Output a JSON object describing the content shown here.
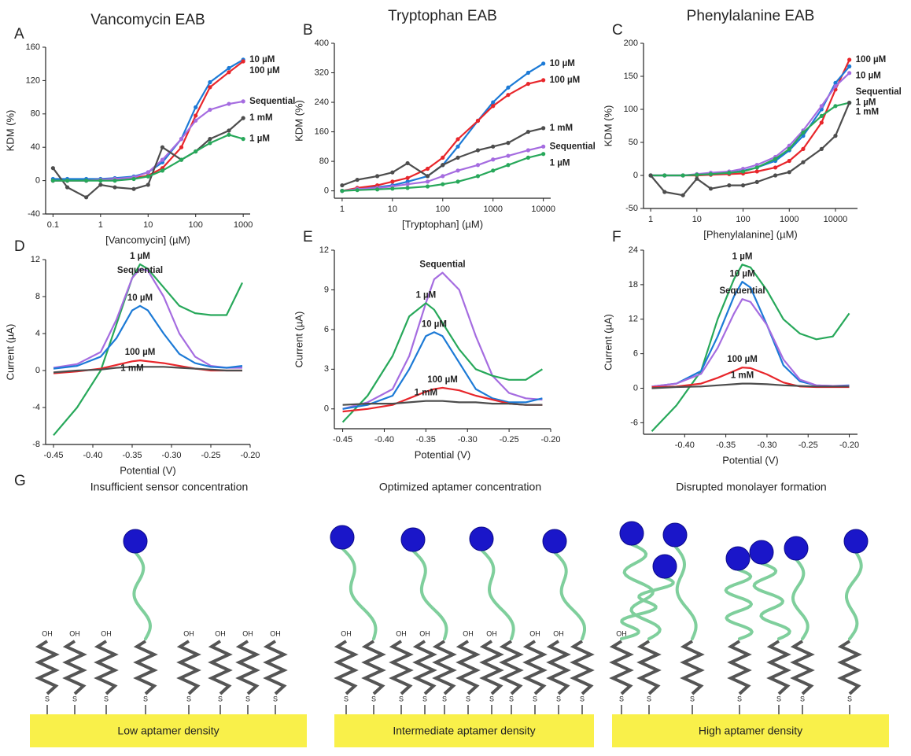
{
  "chart_data": [
    {
      "type": "line",
      "panel": "A",
      "title": "Vancomycin EAB",
      "xlabel": "[Vancomycin] (µM)",
      "ylabel": "KDM (%)",
      "xscale": "log",
      "markers": true,
      "xlim": [
        0.07,
        1400
      ],
      "xticks": [
        0.1,
        1,
        10,
        100,
        1000
      ],
      "ylim": [
        -40,
        160
      ],
      "yticks": [
        -40,
        0,
        40,
        80,
        120,
        160
      ],
      "x": [
        0.1,
        0.2,
        0.5,
        1,
        2,
        5,
        10,
        20,
        50,
        100,
        200,
        500,
        1000
      ],
      "series": [
        {
          "name": "10 µM",
          "color": "#1c7ad6",
          "values": [
            2,
            2,
            2,
            2,
            3,
            5,
            10,
            22,
            50,
            88,
            118,
            135,
            145
          ]
        },
        {
          "name": "100 µM",
          "color": "#e8262b",
          "values": [
            0,
            0,
            0,
            1,
            2,
            3,
            6,
            15,
            40,
            78,
            112,
            130,
            143
          ]
        },
        {
          "name": "Sequential",
          "color": "#a56ce0",
          "values": [
            0,
            0,
            0,
            1,
            2,
            4,
            10,
            25,
            50,
            72,
            85,
            92,
            95
          ]
        },
        {
          "name": "1 mM",
          "color": "#4d4d4d",
          "values": [
            15,
            -8,
            -20,
            -5,
            -8,
            -10,
            -5,
            40,
            25,
            35,
            50,
            60,
            75
          ]
        },
        {
          "name": "1 µM",
          "color": "#27a85a",
          "values": [
            0,
            0,
            0,
            0,
            0,
            2,
            5,
            12,
            25,
            35,
            45,
            55,
            50
          ]
        }
      ]
    },
    {
      "type": "line",
      "panel": "B",
      "title": "Tryptophan EAB",
      "xlabel": "[Tryptophan] (µM)",
      "ylabel": "KDM (%)",
      "xscale": "log",
      "markers": true,
      "xlim": [
        0.7,
        14000
      ],
      "xticks": [
        1,
        10,
        100,
        1000,
        10000
      ],
      "ylim": [
        -20,
        400
      ],
      "yticks": [
        0,
        80,
        160,
        240,
        320,
        400
      ],
      "x": [
        1,
        2,
        5,
        10,
        20,
        50,
        100,
        200,
        500,
        1000,
        2000,
        5000,
        10000
      ],
      "series": [
        {
          "name": "10 µM",
          "color": "#1c7ad6",
          "values": [
            0,
            5,
            10,
            15,
            25,
            40,
            70,
            120,
            190,
            240,
            280,
            320,
            345
          ]
        },
        {
          "name": "100 µM",
          "color": "#e8262b",
          "values": [
            0,
            8,
            15,
            25,
            35,
            60,
            90,
            140,
            190,
            230,
            260,
            290,
            300
          ]
        },
        {
          "name": "1 mM",
          "color": "#4d4d4d",
          "values": [
            15,
            30,
            40,
            50,
            75,
            40,
            70,
            90,
            110,
            120,
            130,
            160,
            170
          ]
        },
        {
          "name": "Sequential",
          "color": "#a56ce0",
          "values": [
            0,
            5,
            8,
            12,
            18,
            25,
            40,
            55,
            70,
            85,
            95,
            110,
            120
          ]
        },
        {
          "name": "1 µM",
          "color": "#27a85a",
          "values": [
            0,
            2,
            4,
            6,
            8,
            12,
            18,
            25,
            40,
            55,
            70,
            90,
            100
          ]
        }
      ]
    },
    {
      "type": "line",
      "panel": "C",
      "title": "Phenylalanine EAB",
      "xlabel": "[Phenylalanine] (µM)",
      "ylabel": "KDM (%)",
      "xscale": "log",
      "markers": true,
      "xlim": [
        0.7,
        30000
      ],
      "xticks": [
        1,
        10,
        100,
        1000,
        10000
      ],
      "ylim": [
        -50,
        200
      ],
      "yticks": [
        -50,
        0,
        50,
        100,
        150,
        200
      ],
      "x": [
        1,
        2,
        5,
        10,
        20,
        50,
        100,
        200,
        500,
        1000,
        2000,
        5000,
        10000,
        20000
      ],
      "series": [
        {
          "name": "100 µM",
          "color": "#e8262b",
          "values": [
            0,
            0,
            0,
            0,
            1,
            2,
            3,
            6,
            12,
            22,
            40,
            80,
            130,
            175
          ]
        },
        {
          "name": "10 µM",
          "color": "#1c7ad6",
          "values": [
            0,
            0,
            0,
            1,
            2,
            4,
            7,
            12,
            22,
            38,
            60,
            100,
            140,
            165
          ]
        },
        {
          "name": "Sequential",
          "color": "#a56ce0",
          "values": [
            0,
            0,
            0,
            2,
            4,
            6,
            10,
            16,
            28,
            45,
            68,
            105,
            135,
            155
          ]
        },
        {
          "name": "1 µM",
          "color": "#27a85a",
          "values": [
            0,
            0,
            0,
            1,
            2,
            4,
            6,
            12,
            25,
            40,
            65,
            90,
            105,
            110
          ]
        },
        {
          "name": "1 mM",
          "color": "#4d4d4d",
          "values": [
            0,
            -25,
            -30,
            -5,
            -20,
            -15,
            -15,
            -10,
            0,
            5,
            20,
            40,
            60,
            110
          ]
        }
      ]
    },
    {
      "type": "line",
      "panel": "D",
      "xlabel": "Potential (V)",
      "ylabel": "Current (µA)",
      "xscale": "linear",
      "xlim": [
        -0.46,
        -0.2
      ],
      "xticks": [
        -0.45,
        {
          "value": -0.4,
          "label": "-0.40"
        },
        -0.35,
        {
          "value": -0.3,
          "label": "-0.30"
        },
        -0.25,
        {
          "value": -0.2,
          "label": "-0.20"
        }
      ],
      "ylim": [
        -8,
        12
      ],
      "yticks": [
        -8,
        -4,
        0,
        4,
        8,
        12
      ],
      "x": [
        -0.45,
        -0.42,
        -0.39,
        -0.37,
        -0.35,
        -0.34,
        -0.33,
        -0.31,
        -0.29,
        -0.27,
        -0.25,
        -0.23,
        -0.21
      ],
      "series": [
        {
          "name": "1 µM",
          "color": "#27a85a",
          "values": [
            -7,
            -4,
            0,
            5,
            10,
            11.5,
            11,
            9,
            7,
            6.2,
            6,
            6,
            9.5
          ]
        },
        {
          "name": "Sequential",
          "color": "#a56ce0",
          "values": [
            0.3,
            0.7,
            2,
            5.5,
            10,
            11,
            10.8,
            8,
            4,
            1.5,
            0.5,
            0.3,
            0.3
          ]
        },
        {
          "name": "10 µM",
          "color": "#1c7ad6",
          "values": [
            0.2,
            0.5,
            1.5,
            3.5,
            6.5,
            7,
            6.5,
            4,
            1.8,
            0.8,
            0.4,
            0.3,
            0.5
          ]
        },
        {
          "name": "100 µM",
          "color": "#e8262b",
          "values": [
            -0.3,
            -0.1,
            0.2,
            0.6,
            1,
            1.1,
            1,
            0.8,
            0.5,
            0.2,
            0,
            0,
            0
          ]
        },
        {
          "name": "1 mM",
          "color": "#4d4d4d",
          "values": [
            -0.2,
            0,
            0.1,
            0.3,
            0.4,
            0.4,
            0.4,
            0.4,
            0.3,
            0.2,
            0.1,
            0,
            0
          ]
        }
      ]
    },
    {
      "type": "line",
      "panel": "E",
      "xlabel": "Potential (V)",
      "ylabel": "Current (µA)",
      "xscale": "linear",
      "xlim": [
        -0.46,
        -0.2
      ],
      "xticks": [
        -0.45,
        {
          "value": -0.4,
          "label": "-0.40"
        },
        -0.35,
        {
          "value": -0.3,
          "label": "-0.30"
        },
        -0.25,
        {
          "value": -0.2,
          "label": "-0.20"
        }
      ],
      "ylim": [
        -1.5,
        12
      ],
      "yticks": [
        0,
        3,
        6,
        9,
        12
      ],
      "x": [
        -0.45,
        -0.42,
        -0.39,
        -0.37,
        -0.35,
        -0.34,
        -0.33,
        -0.31,
        -0.29,
        -0.27,
        -0.25,
        -0.23,
        -0.21
      ],
      "series": [
        {
          "name": "Sequential",
          "color": "#a56ce0",
          "values": [
            0,
            0.5,
            1.5,
            4,
            8,
            9.8,
            10.3,
            9,
            5.5,
            2.5,
            1.2,
            0.8,
            0.7
          ]
        },
        {
          "name": "1 µM",
          "color": "#27a85a",
          "values": [
            -1,
            1,
            4,
            7,
            8,
            7.5,
            6.5,
            4.5,
            3,
            2.5,
            2.2,
            2.2,
            3
          ]
        },
        {
          "name": "10 µM",
          "color": "#1c7ad6",
          "values": [
            0,
            0.3,
            1,
            3,
            5.5,
            5.8,
            5.5,
            3.5,
            1.5,
            0.8,
            0.5,
            0.5,
            0.8
          ]
        },
        {
          "name": "100 µM",
          "color": "#e8262b",
          "values": [
            -0.2,
            0,
            0.3,
            0.8,
            1.3,
            1.5,
            1.6,
            1.4,
            1,
            0.7,
            0.4,
            0.3,
            0.3
          ]
        },
        {
          "name": "1 mM",
          "color": "#4d4d4d",
          "values": [
            0.3,
            0.4,
            0.4,
            0.5,
            0.6,
            0.6,
            0.6,
            0.5,
            0.5,
            0.4,
            0.4,
            0.3,
            0.3
          ]
        }
      ]
    },
    {
      "type": "line",
      "panel": "F",
      "xlabel": "Potential (V)",
      "ylabel": "Current (µA)",
      "xscale": "linear",
      "xlim": [
        -0.45,
        -0.19
      ],
      "xticks": [
        {
          "value": -0.4,
          "label": "-0.40"
        },
        -0.35,
        {
          "value": -0.3,
          "label": "-0.30"
        },
        -0.25,
        {
          "value": -0.2,
          "label": "-0.20"
        }
      ],
      "ylim": [
        -8,
        24
      ],
      "yticks": [
        -6,
        0,
        6,
        12,
        18,
        24
      ],
      "x": [
        -0.44,
        -0.41,
        -0.38,
        -0.36,
        -0.34,
        -0.33,
        -0.32,
        -0.3,
        -0.28,
        -0.26,
        -0.24,
        -0.22,
        -0.2
      ],
      "series": [
        {
          "name": "1 µM",
          "color": "#27a85a",
          "values": [
            -7.5,
            -3,
            3,
            12,
            19,
            21.5,
            21,
            17,
            12,
            9.5,
            8.5,
            9,
            13
          ]
        },
        {
          "name": "10 µM",
          "color": "#1c7ad6",
          "values": [
            0.3,
            0.8,
            3,
            9,
            16,
            18.5,
            17.5,
            11,
            4,
            1.2,
            0.5,
            0.4,
            0.5
          ]
        },
        {
          "name": "Sequential",
          "color": "#a56ce0",
          "values": [
            0.3,
            0.8,
            2.5,
            7,
            13,
            15.5,
            15,
            11,
            5,
            1.5,
            0.5,
            0.4,
            0.4
          ]
        },
        {
          "name": "100 µM",
          "color": "#e8262b",
          "values": [
            0.2,
            0.3,
            0.8,
            1.8,
            3,
            3.6,
            3.5,
            2.4,
            1,
            0.3,
            0.2,
            0.2,
            0.2
          ]
        },
        {
          "name": "1 mM",
          "color": "#4d4d4d",
          "values": [
            0,
            0.2,
            0.3,
            0.5,
            0.7,
            0.8,
            0.8,
            0.7,
            0.5,
            0.4,
            0.3,
            0.3,
            0.3
          ]
        }
      ]
    }
  ],
  "diagram": {
    "panel": "G",
    "captions": [
      "Insufficient sensor concentration",
      "Optimized aptamer concentration",
      "Disrupted monolayer formation"
    ],
    "surfaces": [
      "Low aptamer density",
      "Intermediate aptamer density",
      "High aptamer density"
    ],
    "oh": "OH",
    "s": "S"
  }
}
